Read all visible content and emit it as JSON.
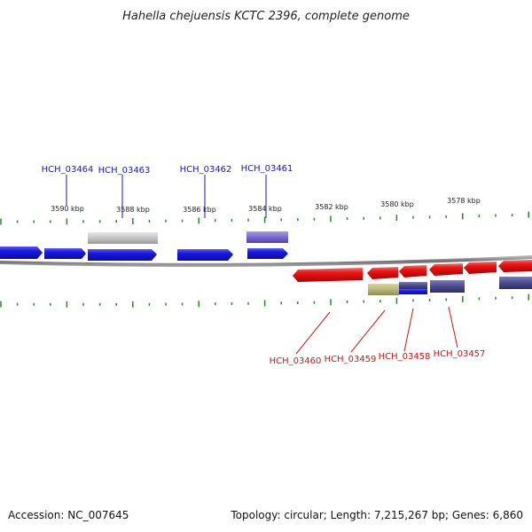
{
  "title": "Hahella chejuensis KCTC 2396, complete genome",
  "footer": {
    "accession": "Accession: NC_007645",
    "stats": "Topology: circular; Length: 7,215,267 bp; Genes: 6,860"
  },
  "colors": {
    "forward_gene": "#1414e6",
    "reverse_gene": "#e61414",
    "backbone": "#7a7a7a",
    "tick": "#228b22",
    "top_label": "#1a1aa6",
    "bottom_label": "#c21818",
    "pseudogene_gray": "#c8c8c8",
    "olive_feature": "#b8b67a",
    "slate_feature": "#4a4a8e",
    "lavender_feature": "#7a6ad0"
  },
  "scale": {
    "unit": "kbp",
    "ticks": [
      {
        "kbp": 3590,
        "label": "3590 kbp"
      },
      {
        "kbp": 3588,
        "label": "3588 kbp"
      },
      {
        "kbp": 3586,
        "label": "3586 kbp"
      },
      {
        "kbp": 3584,
        "label": "3584 kbp"
      },
      {
        "kbp": 3582,
        "label": "3582 kbp"
      },
      {
        "kbp": 3580,
        "label": "3580 kbp"
      },
      {
        "kbp": 3578,
        "label": "3578 kbp"
      }
    ]
  },
  "genes_top": [
    {
      "id": "HCH_03464",
      "label": "HCH_03464"
    },
    {
      "id": "HCH_03463",
      "label": "HCH_03463"
    },
    {
      "id": "HCH_03462",
      "label": "HCH_03462"
    },
    {
      "id": "HCH_03461",
      "label": "HCH_03461"
    }
  ],
  "genes_bottom": [
    {
      "id": "HCH_03460",
      "label": "HCH_03460"
    },
    {
      "id": "HCH_03459",
      "label": "HCH_03459"
    },
    {
      "id": "HCH_03458",
      "label": "HCH_03458"
    },
    {
      "id": "HCH_03457",
      "label": "HCH_03457"
    }
  ]
}
